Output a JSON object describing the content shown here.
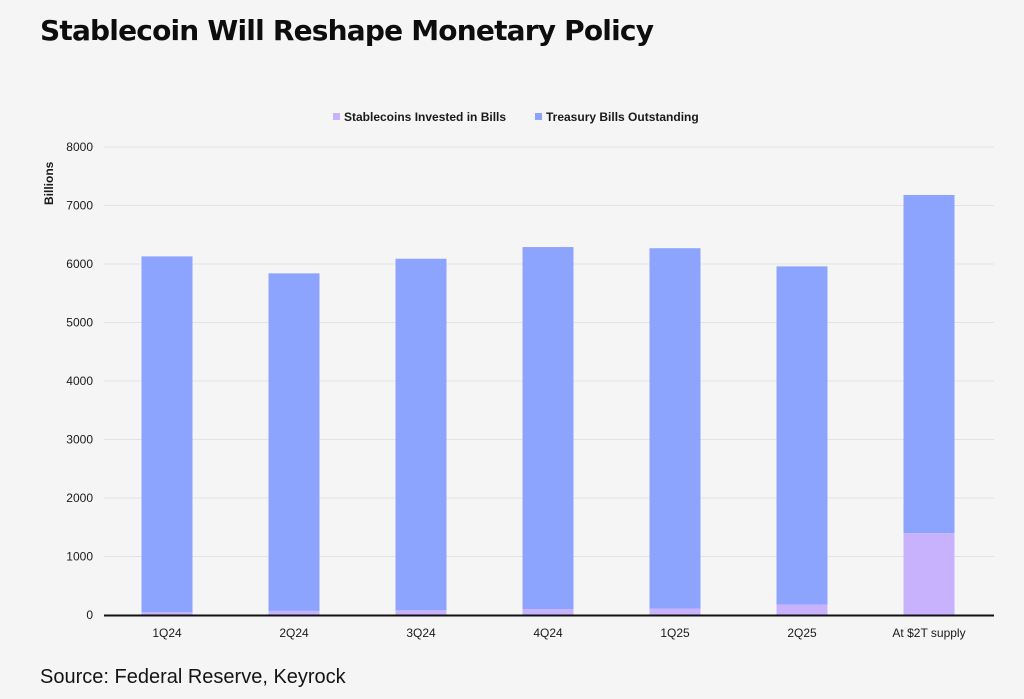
{
  "title": "Stablecoin Will Reshape Monetary Policy",
  "source": "Source: Federal Reserve, Keyrock",
  "colors": {
    "stablecoins": "#c9b2fd",
    "treasury": "#8da4fe",
    "grid": "#e2e2e2",
    "axis": "#111111"
  },
  "chart_data": {
    "type": "bar",
    "stacked": true,
    "categories": [
      "1Q24",
      "2Q24",
      "3Q24",
      "4Q24",
      "1Q25",
      "2Q25",
      "At $2T supply"
    ],
    "series": [
      {
        "name": "Stablecoins Invested in Bills",
        "values": [
          50,
          70,
          80,
          100,
          110,
          180,
          1400
        ]
      },
      {
        "name": "Treasury Bills Outstanding",
        "values": [
          6080,
          5770,
          6010,
          6190,
          6160,
          5780,
          5780
        ]
      }
    ],
    "ylabel": "Billions",
    "xlabel": "",
    "ylim": [
      0,
      8000
    ],
    "yticks": [
      0,
      1000,
      2000,
      3000,
      4000,
      5000,
      6000,
      7000,
      8000
    ],
    "grid": true,
    "legend_position": "top-center"
  }
}
